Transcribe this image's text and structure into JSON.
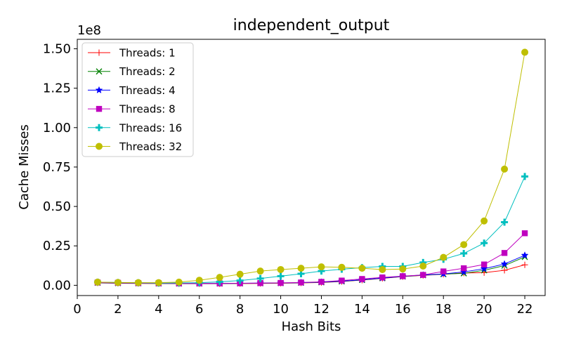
{
  "chart_data": {
    "type": "line",
    "title": "independent_output",
    "xlabel": "Hash Bits",
    "ylabel": "Cache Misses",
    "scale_label": "1e8",
    "xlim": [
      0,
      23
    ],
    "ylim": [
      -0.065,
      1.56
    ],
    "xticks": [
      0,
      2,
      4,
      6,
      8,
      10,
      12,
      14,
      16,
      18,
      20,
      22
    ],
    "xtick_labels": [
      "0",
      "2",
      "4",
      "6",
      "8",
      "10",
      "12",
      "14",
      "16",
      "18",
      "20",
      "22"
    ],
    "yticks": [
      0.0,
      0.25,
      0.5,
      0.75,
      1.0,
      1.25,
      1.5
    ],
    "ytick_labels": [
      "0.00",
      "0.25",
      "0.50",
      "0.75",
      "1.00",
      "1.25",
      "1.50"
    ],
    "grid": false,
    "legend_position": "upper-left",
    "x": [
      1,
      2,
      3,
      4,
      5,
      6,
      7,
      8,
      9,
      10,
      11,
      12,
      13,
      14,
      15,
      16,
      17,
      18,
      19,
      20,
      21,
      22
    ],
    "series": [
      {
        "name": "Threads: 1",
        "color": "#ff0000",
        "marker": "plus-thin",
        "values": [
          0.015,
          0.013,
          0.012,
          0.011,
          0.01,
          0.01,
          0.01,
          0.011,
          0.012,
          0.013,
          0.015,
          0.018,
          0.024,
          0.033,
          0.044,
          0.055,
          0.063,
          0.07,
          0.078,
          0.08,
          0.095,
          0.13
        ]
      },
      {
        "name": "Threads: 2",
        "color": "#008000",
        "marker": "x",
        "values": [
          0.016,
          0.014,
          0.013,
          0.012,
          0.011,
          0.011,
          0.011,
          0.012,
          0.013,
          0.014,
          0.016,
          0.019,
          0.025,
          0.034,
          0.045,
          0.056,
          0.064,
          0.071,
          0.076,
          0.095,
          0.125,
          0.18
        ]
      },
      {
        "name": "Threads: 4",
        "color": "#0000ff",
        "marker": "star",
        "values": [
          0.017,
          0.015,
          0.014,
          0.013,
          0.012,
          0.012,
          0.012,
          0.013,
          0.014,
          0.015,
          0.017,
          0.02,
          0.026,
          0.035,
          0.046,
          0.057,
          0.065,
          0.072,
          0.085,
          0.105,
          0.135,
          0.19
        ]
      },
      {
        "name": "Threads: 8",
        "color": "#bf00bf",
        "marker": "square",
        "values": [
          0.018,
          0.016,
          0.014,
          0.013,
          0.012,
          0.012,
          0.012,
          0.013,
          0.014,
          0.015,
          0.018,
          0.022,
          0.03,
          0.04,
          0.05,
          0.058,
          0.066,
          0.088,
          0.108,
          0.132,
          0.205,
          0.33
        ]
      },
      {
        "name": "Threads: 16",
        "color": "#00bfbf",
        "marker": "plus",
        "values": [
          0.02,
          0.018,
          0.016,
          0.014,
          0.015,
          0.017,
          0.022,
          0.03,
          0.043,
          0.058,
          0.073,
          0.09,
          0.102,
          0.112,
          0.12,
          0.12,
          0.145,
          0.165,
          0.202,
          0.268,
          0.4,
          0.69
        ]
      },
      {
        "name": "Threads: 32",
        "color": "#bfbf00",
        "marker": "circle",
        "values": [
          0.02,
          0.018,
          0.017,
          0.017,
          0.02,
          0.032,
          0.05,
          0.07,
          0.09,
          0.1,
          0.108,
          0.117,
          0.114,
          0.108,
          0.1,
          0.103,
          0.122,
          0.177,
          0.258,
          0.408,
          0.737,
          1.478
        ]
      }
    ]
  }
}
